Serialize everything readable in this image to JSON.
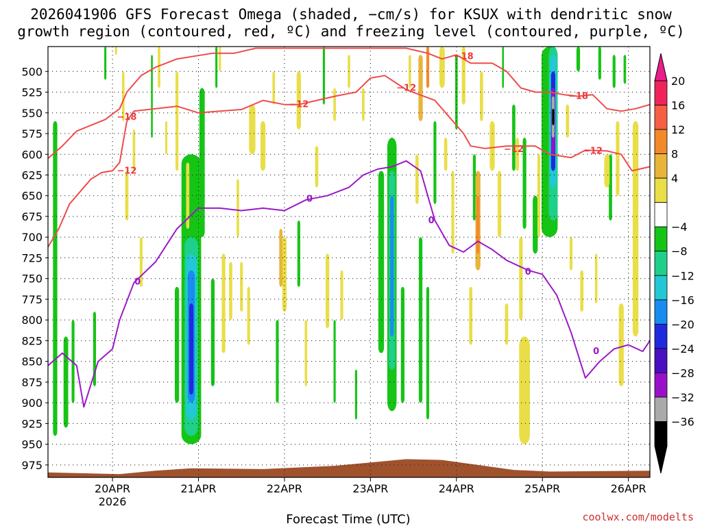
{
  "chart_data": {
    "type": "heatmap",
    "title_line1": "2026041906 GFS Forecast Omega (shaded, −cm/s) for KSUX with dendritic snow",
    "title_line2": "growth region (contoured, red, ºC) and freezing level (contoured, purple, ºC)",
    "xlabel": "Forecast Time (UTC)",
    "ylabel": "",
    "credit": "coolwx.com/modelts",
    "x_range_hours": [
      0,
      168
    ],
    "y_range_hpa": [
      470,
      990
    ],
    "y_ticks": [
      500,
      525,
      550,
      575,
      600,
      625,
      650,
      675,
      700,
      725,
      750,
      775,
      800,
      825,
      850,
      875,
      900,
      925,
      950,
      975
    ],
    "x_ticks": [
      {
        "label": "20APR",
        "sublabel": "2026",
        "hour": 18
      },
      {
        "label": "21APR",
        "sublabel": "",
        "hour": 42
      },
      {
        "label": "22APR",
        "sublabel": "",
        "hour": 66
      },
      {
        "label": "23APR",
        "sublabel": "",
        "hour": 90
      },
      {
        "label": "24APR",
        "sublabel": "",
        "hour": 114
      },
      {
        "label": "25APR",
        "sublabel": "",
        "hour": 138
      },
      {
        "label": "26APR",
        "sublabel": "",
        "hour": 162
      }
    ],
    "colorbar": {
      "labels": [
        "20",
        "16",
        "12",
        "8",
        "4",
        "−4",
        "−8",
        "−12",
        "−16",
        "−20",
        "−24",
        "−28",
        "−32",
        "−36"
      ],
      "colors": [
        "#f0245a",
        "#f56045",
        "#f28a2c",
        "#e9b43a",
        "#e9de48",
        "#ffffff",
        "#16c416",
        "#1fd08a",
        "#22c8d6",
        "#1a8cf0",
        "#1f2ae0",
        "#4a0fc0",
        "#9a10c8",
        "#aaaaaa",
        "#000000"
      ],
      "top_arrow_color": "#e81e8c",
      "bottom_arrow_color": "#000000"
    },
    "series": [
      {
        "name": "-12 C isotherm",
        "color": "#f04a4a",
        "label": "−12",
        "points": [
          [
            0,
            712
          ],
          [
            3,
            690
          ],
          [
            6,
            660
          ],
          [
            9,
            645
          ],
          [
            12,
            630
          ],
          [
            15,
            622
          ],
          [
            18,
            620
          ],
          [
            20,
            610
          ],
          [
            22,
            560
          ],
          [
            24,
            548
          ],
          [
            30,
            545
          ],
          [
            36,
            542
          ],
          [
            42,
            550
          ],
          [
            48,
            548
          ],
          [
            54,
            546
          ],
          [
            60,
            535
          ],
          [
            66,
            540
          ],
          [
            70,
            540
          ],
          [
            75,
            535
          ],
          [
            80,
            530
          ],
          [
            86,
            525
          ],
          [
            90,
            508
          ],
          [
            94,
            505
          ],
          [
            100,
            522
          ],
          [
            108,
            535
          ],
          [
            112,
            555
          ],
          [
            116,
            575
          ],
          [
            118,
            590
          ],
          [
            122,
            593
          ],
          [
            128,
            590
          ],
          [
            136,
            590
          ],
          [
            140,
            600
          ],
          [
            146,
            604
          ],
          [
            150,
            595
          ],
          [
            156,
            596
          ],
          [
            160,
            600
          ],
          [
            163,
            620
          ],
          [
            168,
            615
          ]
        ]
      },
      {
        "name": "-18 C isotherm",
        "color": "#f04a4a",
        "label": "−18",
        "points": [
          [
            0,
            605
          ],
          [
            4,
            590
          ],
          [
            8,
            572
          ],
          [
            12,
            565
          ],
          [
            16,
            558
          ],
          [
            20,
            545
          ],
          [
            22,
            525
          ],
          [
            26,
            505
          ],
          [
            30,
            495
          ],
          [
            36,
            485
          ],
          [
            46,
            478
          ],
          [
            52,
            478
          ],
          [
            58,
            472
          ],
          [
            66,
            472
          ],
          [
            78,
            472
          ],
          [
            92,
            472
          ],
          [
            100,
            472
          ],
          [
            106,
            478
          ],
          [
            110,
            485
          ],
          [
            114,
            480
          ],
          [
            118,
            490
          ],
          [
            124,
            490
          ],
          [
            128,
            500
          ],
          [
            132,
            520
          ],
          [
            136,
            525
          ],
          [
            140,
            525
          ],
          [
            144,
            528
          ],
          [
            148,
            530
          ],
          [
            152,
            528
          ],
          [
            156,
            545
          ],
          [
            160,
            548
          ],
          [
            164,
            545
          ],
          [
            168,
            540
          ]
        ]
      },
      {
        "name": "0 C freezing level",
        "color": "#9a18c8",
        "label": "0",
        "points": [
          [
            0,
            855
          ],
          [
            4,
            840
          ],
          [
            8,
            855
          ],
          [
            10,
            905
          ],
          [
            14,
            850
          ],
          [
            18,
            835
          ],
          [
            20,
            800
          ],
          [
            24,
            755
          ],
          [
            30,
            730
          ],
          [
            36,
            690
          ],
          [
            42,
            665
          ],
          [
            48,
            665
          ],
          [
            54,
            668
          ],
          [
            60,
            665
          ],
          [
            66,
            668
          ],
          [
            72,
            655
          ],
          [
            78,
            650
          ],
          [
            84,
            640
          ],
          [
            88,
            625
          ],
          [
            92,
            618
          ],
          [
            96,
            615
          ],
          [
            100,
            608
          ],
          [
            104,
            620
          ],
          [
            108,
            680
          ],
          [
            112,
            710
          ],
          [
            116,
            718
          ],
          [
            120,
            705
          ],
          [
            124,
            715
          ],
          [
            128,
            728
          ],
          [
            134,
            740
          ],
          [
            138,
            745
          ],
          [
            142,
            770
          ],
          [
            146,
            815
          ],
          [
            150,
            870
          ],
          [
            154,
            850
          ],
          [
            158,
            835
          ],
          [
            162,
            830
          ],
          [
            166,
            838
          ],
          [
            168,
            825
          ]
        ]
      }
    ],
    "shaded_regions": [
      {
        "label": "strong ascent 21APR",
        "x": 40,
        "ymin": 640,
        "ymax": 950,
        "peak": -24
      },
      {
        "label": "ascent 23APR",
        "x": 96,
        "ymin": 600,
        "ymax": 860,
        "peak": -20
      },
      {
        "label": "ascent 25APR",
        "x": 144,
        "ymin": 470,
        "ymax": 680,
        "peak": -36
      },
      {
        "label": "descent 24APR",
        "x": 122,
        "ymin": 620,
        "ymax": 740,
        "peak": 12
      }
    ],
    "terrain_surface": {
      "color": "#a0522d",
      "points": [
        [
          0,
          984
        ],
        [
          20,
          986
        ],
        [
          30,
          982
        ],
        [
          40,
          979
        ],
        [
          60,
          980
        ],
        [
          80,
          976
        ],
        [
          90,
          972
        ],
        [
          100,
          968
        ],
        [
          110,
          969
        ],
        [
          120,
          975
        ],
        [
          130,
          981
        ],
        [
          140,
          983
        ],
        [
          168,
          982
        ]
      ]
    }
  }
}
